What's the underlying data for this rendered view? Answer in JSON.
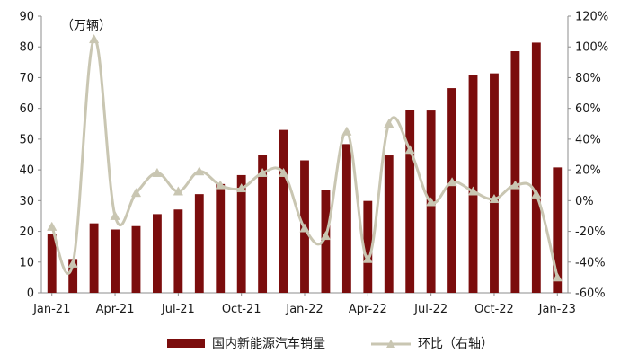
{
  "chart_data": {
    "type": "bar+line",
    "unit_label": "（万辆）",
    "x_tick_labels": [
      "Jan-21",
      "Apr-21",
      "Jul-21",
      "Oct-21",
      "Jan-22",
      "Apr-22",
      "Jul-22",
      "Oct-22",
      "Jan-23"
    ],
    "months": [
      "2021-01",
      "2021-02",
      "2021-03",
      "2021-04",
      "2021-05",
      "2021-06",
      "2021-07",
      "2021-08",
      "2021-09",
      "2021-10",
      "2021-11",
      "2021-12",
      "2022-01",
      "2022-02",
      "2022-03",
      "2022-04",
      "2022-05",
      "2022-06",
      "2022-07",
      "2022-08",
      "2022-09",
      "2022-10",
      "2022-11",
      "2022-12",
      "2023-01"
    ],
    "left_axis": {
      "min": 0,
      "max": 90,
      "step": 10,
      "ticks": [
        "0",
        "10",
        "20",
        "30",
        "40",
        "50",
        "60",
        "70",
        "80",
        "90"
      ]
    },
    "right_axis": {
      "min": -60,
      "max": 120,
      "step": 20,
      "ticks": [
        "-60%",
        "-40%",
        "-20%",
        "0%",
        "20%",
        "40%",
        "60%",
        "80%",
        "100%",
        "120%"
      ]
    },
    "series": [
      {
        "name": "国内新能源汽车销量",
        "type": "bar",
        "axis": "left",
        "color": "#7b0d0d",
        "values": [
          19.0,
          11.0,
          22.6,
          20.6,
          21.7,
          25.6,
          27.1,
          32.1,
          35.4,
          38.3,
          45.0,
          53.0,
          43.1,
          33.4,
          48.4,
          29.9,
          44.7,
          59.6,
          59.3,
          66.6,
          70.8,
          71.4,
          78.6,
          81.4,
          40.8
        ]
      },
      {
        "name": "环比（右轴）",
        "type": "line",
        "axis": "right",
        "color": "#c9c6b2",
        "values": [
          -17,
          -41,
          105,
          -10,
          5,
          18,
          6,
          19,
          10,
          8,
          18,
          18,
          -18,
          -23,
          45,
          -38,
          50,
          33,
          -1,
          12,
          6,
          1,
          10,
          4,
          -50
        ]
      }
    ],
    "grid": false,
    "legend_position": "bottom"
  }
}
